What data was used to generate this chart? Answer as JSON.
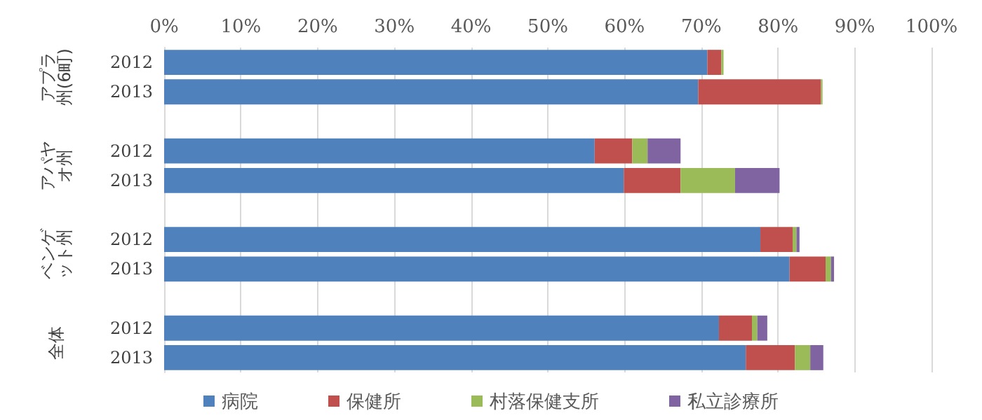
{
  "chart_data": {
    "type": "bar",
    "orientation": "horizontal",
    "stacked": true,
    "categories": [
      "2012",
      "2013",
      null,
      "2012",
      "2013",
      null,
      "2012",
      "2013",
      null,
      "2012",
      "2013"
    ],
    "series": [
      {
        "name": "病院",
        "color": "#4f81bd",
        "values": [
          70.8,
          69.6,
          null,
          56.1,
          59.9,
          null,
          77.7,
          81.5,
          null,
          72.3,
          75.8
        ]
      },
      {
        "name": "保健所",
        "color": "#c0504d",
        "values": [
          1.8,
          16.0,
          null,
          4.9,
          7.4,
          null,
          4.2,
          4.7,
          null,
          4.3,
          6.4
        ]
      },
      {
        "name": "村落保健支所",
        "color": "#9bbb59",
        "values": [
          0.3,
          0.2,
          null,
          2.0,
          7.1,
          null,
          0.5,
          0.7,
          null,
          0.7,
          2.0
        ]
      },
      {
        "name": "私立診療所",
        "color": "#8064a2",
        "values": [
          0,
          0,
          null,
          4.3,
          5.8,
          null,
          0.4,
          0.4,
          null,
          1.3,
          1.7
        ]
      }
    ],
    "xlim": [
      0,
      100
    ],
    "xticks": [
      {
        "value": 0,
        "label": "0%"
      },
      {
        "value": 10,
        "label": "10%"
      },
      {
        "value": 20,
        "label": "20%"
      },
      {
        "value": 30,
        "label": "30%"
      },
      {
        "value": 40,
        "label": "40%"
      },
      {
        "value": 50,
        "label": "50%"
      },
      {
        "value": 60,
        "label": "60%"
      },
      {
        "value": 70,
        "label": "70%"
      },
      {
        "value": 80,
        "label": "80%"
      },
      {
        "value": 90,
        "label": "90%"
      },
      {
        "value": 100,
        "label": "100%"
      }
    ],
    "annotations": [
      "アプラ州(6町)",
      "アパヤオ州",
      "ベンゲット州",
      "全体"
    ],
    "grid": "x",
    "legend": "bottom"
  }
}
